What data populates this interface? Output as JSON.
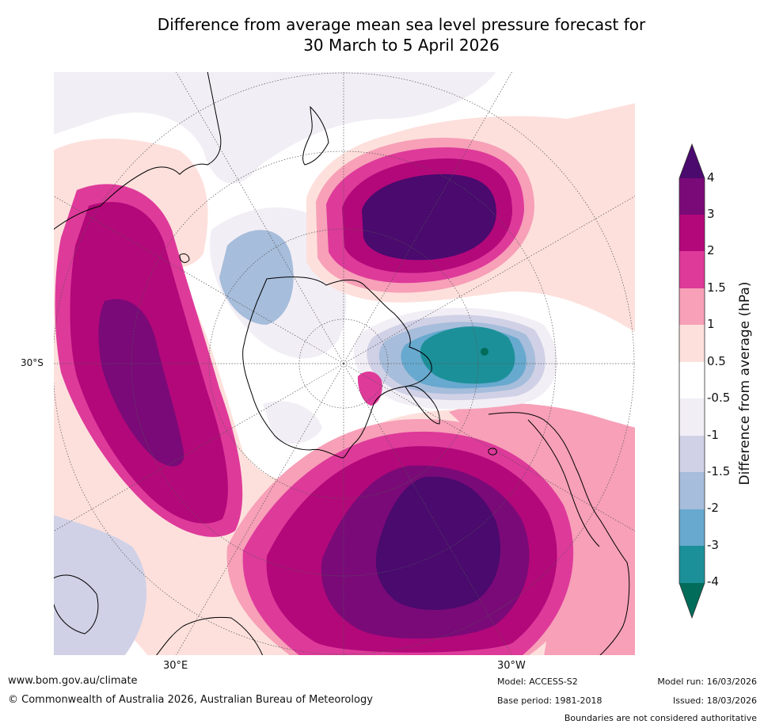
{
  "title": {
    "line1": "Difference from average mean sea level pressure forecast for",
    "line2": "30 March to 5 April 2026"
  },
  "map": {
    "projection": "south-polar-stereographic",
    "lat_label": "30°S",
    "lon_label_east": "30°E",
    "lon_label_west": "30°W"
  },
  "legend": {
    "title": "Difference from average (hPa)",
    "ticks": [
      "4",
      "3",
      "2",
      "1.5",
      "1",
      "0.5",
      "-0.5",
      "-1",
      "-1.5",
      "-2",
      "-3",
      "-4"
    ],
    "colors": {
      "gt4": "#4a0a6e",
      "c3_4": "#7a0a78",
      "c2_3": "#b3087a",
      "c15_2": "#de3a9a",
      "c1_15": "#f7a0b8",
      "c05_1": "#fde0dc",
      "c_neutral": "#ffffff",
      "cm05_m1": "#f2eef5",
      "cm1_m15": "#d0d1e6",
      "cm15_m2": "#a6bddb",
      "cm2_m3": "#67a9cf",
      "cm3_m4": "#1c9099",
      "lt_m4": "#016c59"
    }
  },
  "footer": {
    "website": "www.bom.gov.au/climate",
    "copyright": "© Commonwealth of Australia 2026, Australian Bureau of Meteorology",
    "model": "Model: ACCESS-S2",
    "base_period": "Base period: 1981-2018",
    "model_run": "Model run: 16/03/2026",
    "issued": "Issued: 18/03/2026",
    "disclaimer": "Boundaries are not considered authoritative"
  }
}
